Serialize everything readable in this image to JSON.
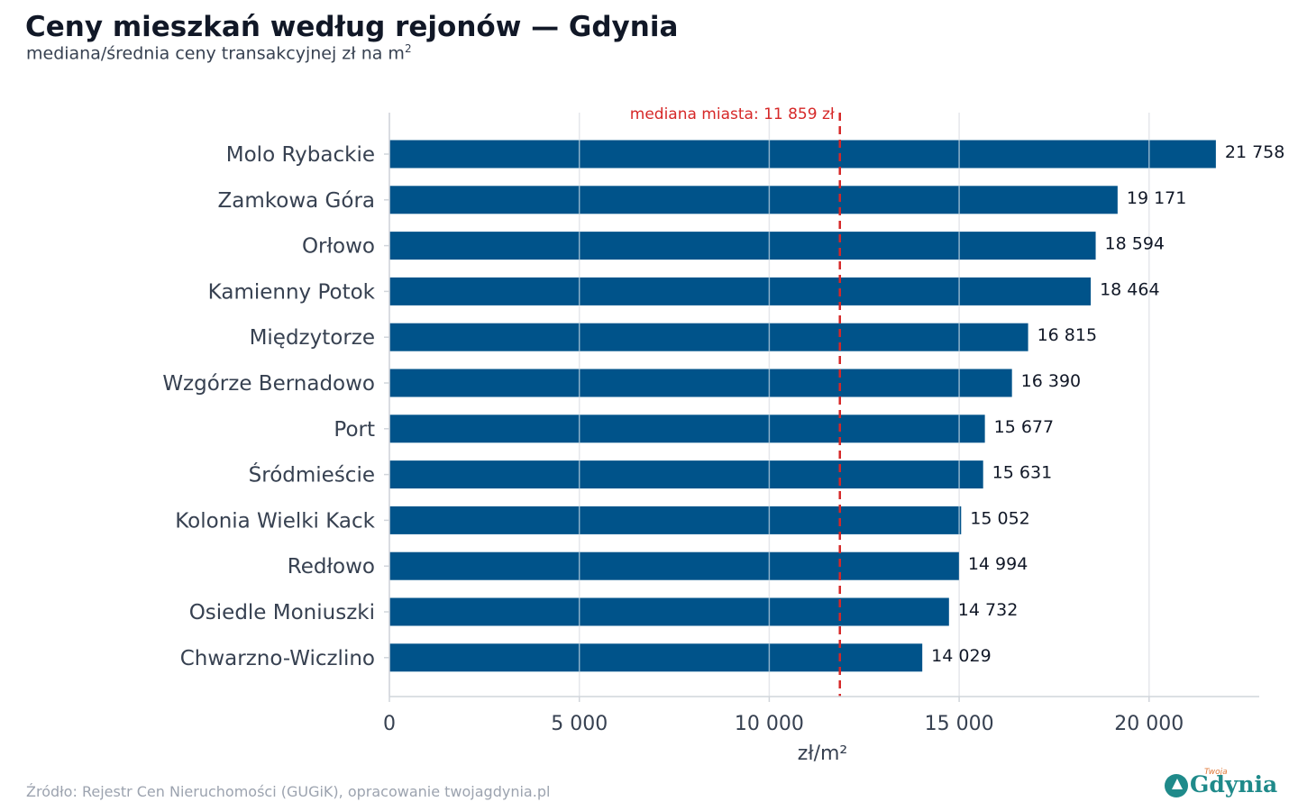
{
  "header": {
    "title": "Ceny mieszkań według rejonów — Gdynia",
    "subtitle": "mediana/średnia ceny transakcyjnej zł na m",
    "subtitle_sup": "2"
  },
  "footer": {
    "source": "Źródło: Rejestr Cen Nieruchomości (GUGiK), opracowanie twojagdynia.pl",
    "logo_text": "Gdynia",
    "logo_small_text": "Twoja"
  },
  "colors": {
    "bar": "#00538a",
    "reference_line": "#d62828",
    "grid": "#e5e7eb",
    "axis": "#d1d5db"
  },
  "chart_data": {
    "type": "bar",
    "orientation": "horizontal",
    "categories": [
      "Molo Rybackie",
      "Zamkowa Góra",
      "Orłowo",
      "Kamienny Potok",
      "Międzytorze",
      "Wzgórze Bernadowo",
      "Port",
      "Śródmieście",
      "Kolonia Wielki Kack",
      "Redłowo",
      "Osiedle Moniuszki",
      "Chwarzno-Wiczlino"
    ],
    "values": [
      21758,
      19171,
      18594,
      18464,
      16815,
      16390,
      15677,
      15631,
      15052,
      14994,
      14732,
      14029
    ],
    "value_labels": [
      "21 758",
      "19 171",
      "18 594",
      "18 464",
      "16 815",
      "16 390",
      "15 677",
      "15 631",
      "15 052",
      "14 994",
      "14 732",
      "14 029"
    ],
    "xlabel": "zł/m²",
    "xlim": [
      0,
      22900
    ],
    "xticks": [
      0,
      5000,
      10000,
      15000,
      20000
    ],
    "xtick_labels": [
      "0",
      "5 000",
      "10 000",
      "15 000",
      "20 000"
    ],
    "grid": "vertical",
    "reference_line": {
      "value": 11859,
      "label": "mediana miasta: 11 859 zł",
      "style": "dashed"
    }
  }
}
